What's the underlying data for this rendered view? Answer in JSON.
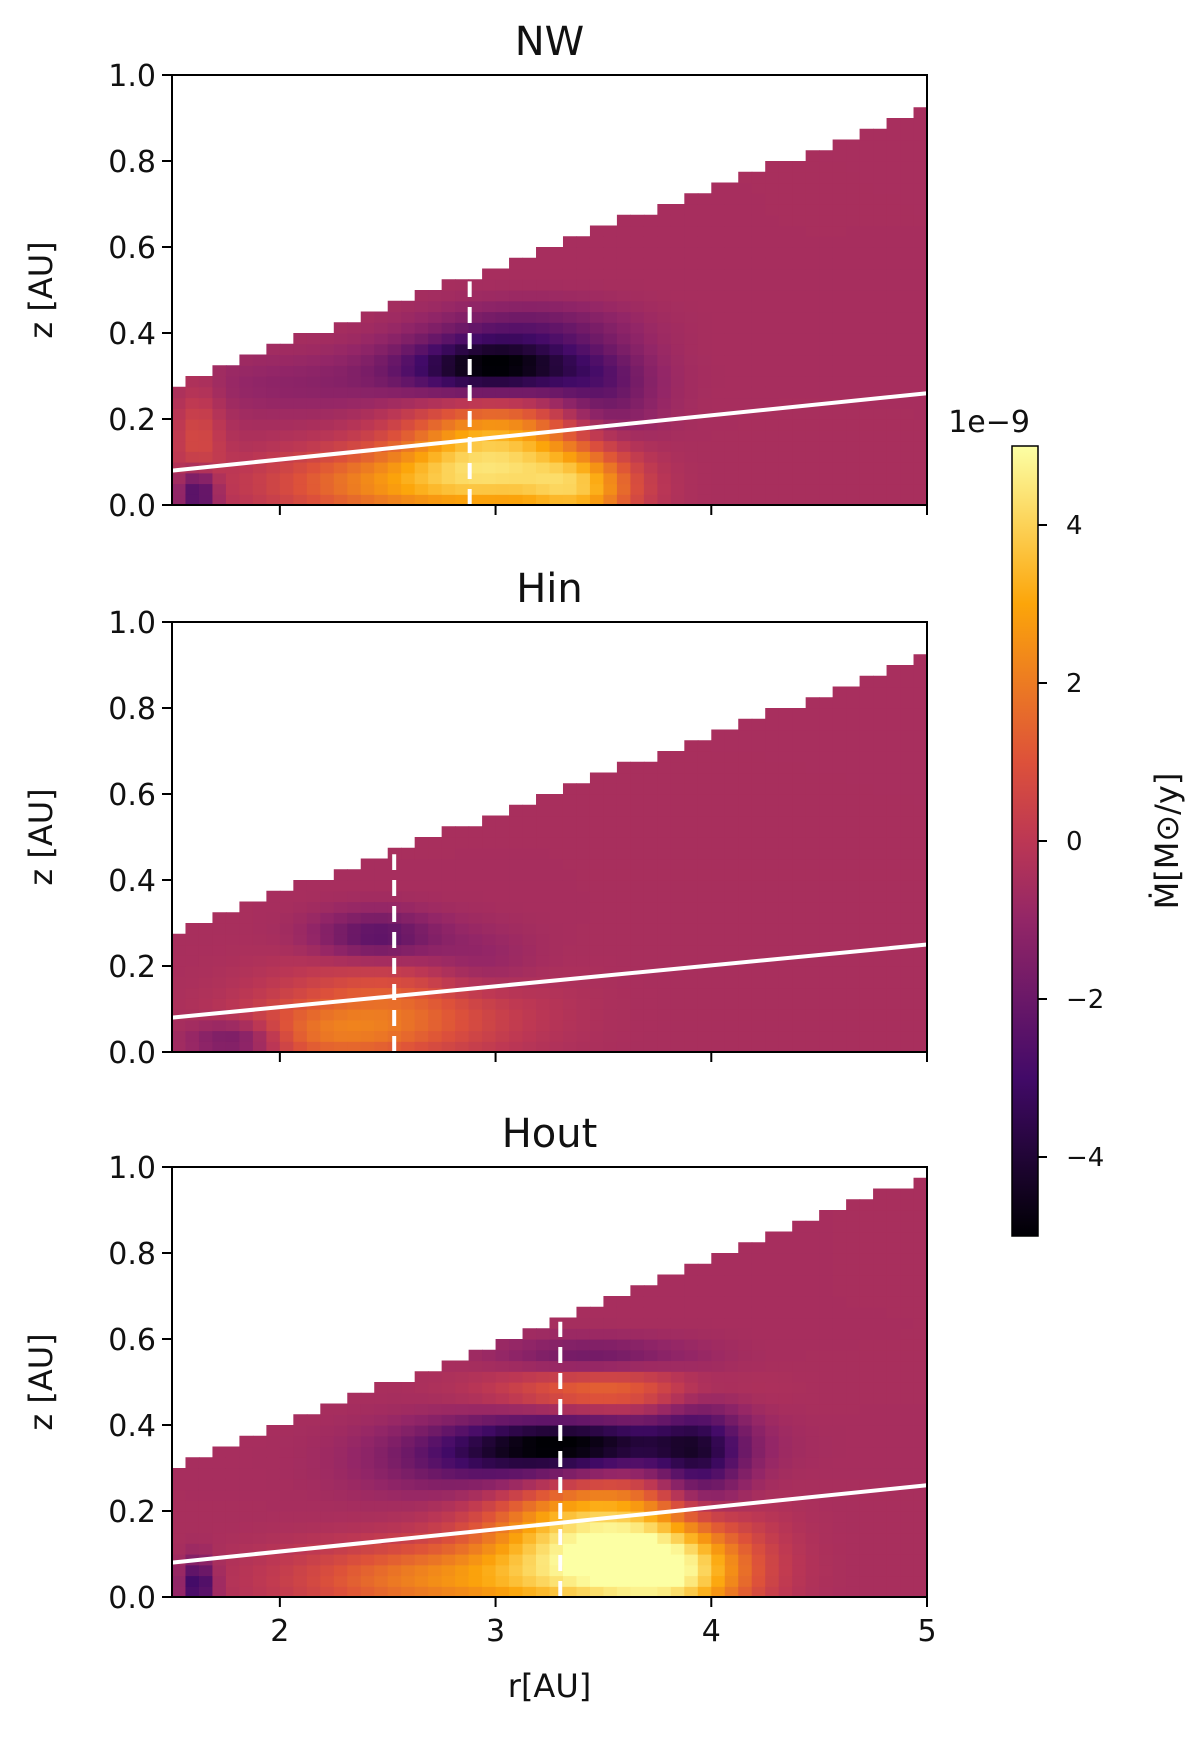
{
  "chart_data": {
    "type": "heatmap",
    "colormap": "inferno",
    "colorbar": {
      "label": "Ṁ[M⊙/y]",
      "multiplier": "1e−9",
      "range": [
        -5,
        5
      ],
      "ticks": [
        -4,
        -2,
        0,
        2,
        4
      ],
      "tick_labels": [
        "−4",
        "−2",
        "0",
        "2",
        "4"
      ]
    },
    "xlabel": "r[AU]",
    "ylabel": "z [AU]",
    "xlim": [
      1.5,
      5
    ],
    "ylim": [
      0,
      1
    ],
    "x_ticks": [
      2,
      3,
      4,
      5
    ],
    "x_tick_labels": [
      "2",
      "3",
      "4",
      "5"
    ],
    "y_ticks": [
      0,
      0.2,
      0.4,
      0.6,
      0.8,
      1.0
    ],
    "y_tick_labels": [
      "0.0",
      "0.2",
      "0.4",
      "0.6",
      "0.8",
      "1.0"
    ],
    "grid": false,
    "panels": [
      {
        "title": "NW",
        "upper_boundary": [
          [
            1.5,
            0.28
          ],
          [
            5.0,
            0.92
          ]
        ],
        "white_line": [
          [
            1.5,
            0.08
          ],
          [
            5.0,
            0.26
          ]
        ],
        "dashed_line_r": 2.88,
        "dashed_line_zmax": 0.52,
        "features": [
          {
            "r": 3.0,
            "z": 0.32,
            "sr": 0.3,
            "sz": 0.05,
            "value": -5.0
          },
          {
            "r": 3.15,
            "z": 0.42,
            "sr": 0.3,
            "sz": 0.04,
            "value": -1.2
          },
          {
            "r": 3.5,
            "z": 0.25,
            "sr": 0.18,
            "sz": 0.08,
            "value": -1.5
          },
          {
            "r": 3.0,
            "z": 0.12,
            "sr": 0.3,
            "sz": 0.1,
            "value": 4.0
          },
          {
            "r": 3.4,
            "z": 0.04,
            "sr": 0.18,
            "sz": 0.06,
            "value": 3.0
          },
          {
            "r": 2.5,
            "z": 0.05,
            "sr": 0.4,
            "sz": 0.06,
            "value": 2.5
          },
          {
            "r": 2.2,
            "z": 0.28,
            "sr": 0.45,
            "sz": 0.05,
            "value": -0.7
          },
          {
            "r": 1.62,
            "z": 0.03,
            "sr": 0.06,
            "sz": 0.04,
            "value": -3.0
          },
          {
            "r": 1.62,
            "z": 0.15,
            "sr": 0.08,
            "sz": 0.1,
            "value": 1.2
          }
        ]
      },
      {
        "title": "Hin",
        "upper_boundary": [
          [
            1.5,
            0.28
          ],
          [
            5.0,
            0.92
          ]
        ],
        "white_line": [
          [
            1.5,
            0.08
          ],
          [
            5.0,
            0.25
          ]
        ],
        "dashed_line_r": 2.53,
        "dashed_line_zmax": 0.46,
        "features": [
          {
            "r": 2.45,
            "z": 0.27,
            "sr": 0.2,
            "sz": 0.04,
            "value": -2.0
          },
          {
            "r": 2.55,
            "z": 0.1,
            "sr": 0.4,
            "sz": 0.08,
            "value": 2.0
          },
          {
            "r": 2.9,
            "z": 0.2,
            "sr": 0.2,
            "sz": 0.06,
            "value": -0.9
          },
          {
            "r": 1.8,
            "z": 0.03,
            "sr": 0.15,
            "sz": 0.03,
            "value": -1.8
          },
          {
            "r": 2.2,
            "z": 0.04,
            "sr": 0.3,
            "sz": 0.05,
            "value": 1.4
          }
        ]
      },
      {
        "title": "Hout",
        "upper_boundary": [
          [
            1.5,
            0.3
          ],
          [
            5.0,
            0.98
          ]
        ],
        "white_line": [
          [
            1.5,
            0.08
          ],
          [
            5.0,
            0.26
          ]
        ],
        "dashed_line_r": 3.3,
        "dashed_line_zmax": 0.64,
        "features": [
          {
            "r": 3.35,
            "z": 0.35,
            "sr": 0.4,
            "sz": 0.05,
            "value": -5.0
          },
          {
            "r": 3.45,
            "z": 0.12,
            "sr": 0.35,
            "sz": 0.12,
            "value": 5.0
          },
          {
            "r": 3.85,
            "z": 0.06,
            "sr": 0.25,
            "sz": 0.08,
            "value": 3.5
          },
          {
            "r": 2.7,
            "z": 0.04,
            "sr": 0.45,
            "sz": 0.06,
            "value": 2.5
          },
          {
            "r": 3.95,
            "z": 0.32,
            "sr": 0.15,
            "sz": 0.1,
            "value": -2.5
          },
          {
            "r": 3.5,
            "z": 0.48,
            "sr": 0.35,
            "sz": 0.04,
            "value": 2.0
          },
          {
            "r": 3.45,
            "z": 0.56,
            "sr": 0.3,
            "sz": 0.03,
            "value": -1.5
          },
          {
            "r": 2.9,
            "z": 0.3,
            "sr": 0.35,
            "sz": 0.06,
            "value": -1.2
          },
          {
            "r": 1.62,
            "z": 0.03,
            "sr": 0.05,
            "sz": 0.04,
            "value": -3.0
          }
        ]
      }
    ]
  }
}
